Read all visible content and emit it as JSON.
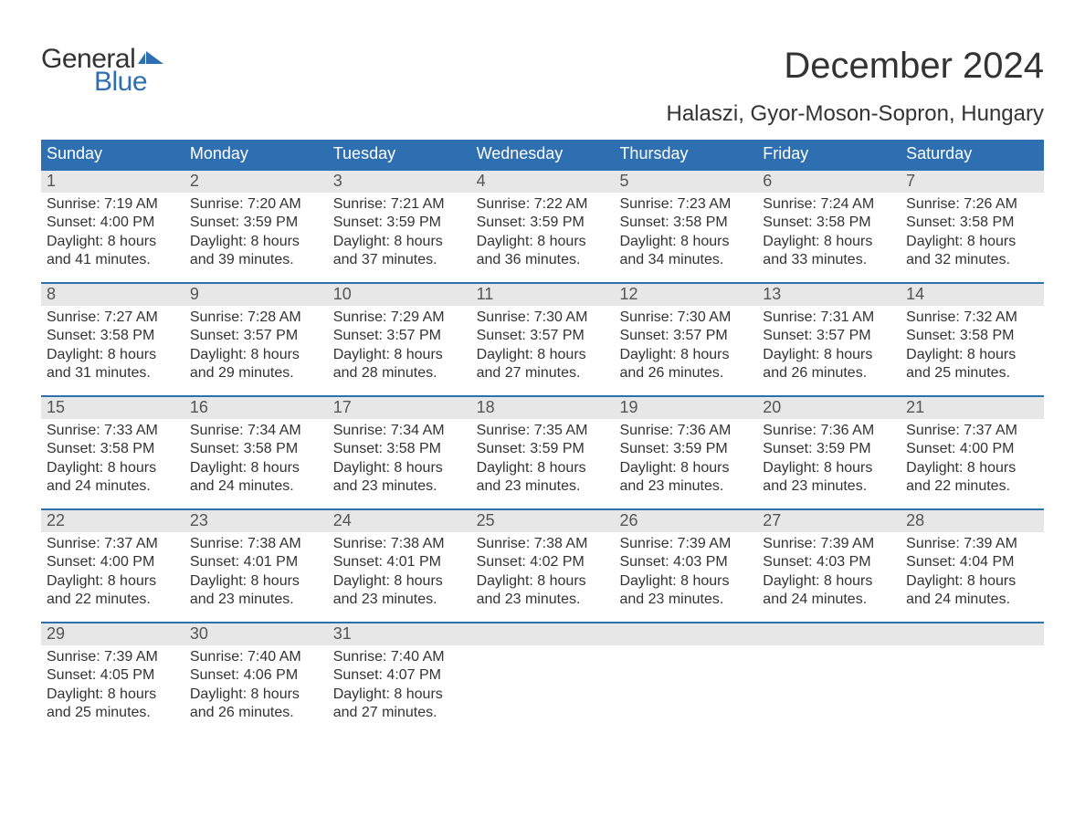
{
  "logo": {
    "word1": "General",
    "word2": "Blue",
    "flag_color": "#2e6fb2"
  },
  "title": "December 2024",
  "subtitle": "Halaszi, Gyor-Moson-Sopron, Hungary",
  "colors": {
    "header_bg": "#2e6fb2",
    "header_text": "#ffffff",
    "daynum_bg": "#e7e7e7",
    "daynum_text": "#555555",
    "body_text": "#333333",
    "week_border": "#2e6fb2",
    "page_bg": "#ffffff"
  },
  "typography": {
    "title_fontsize": 40,
    "subtitle_fontsize": 24,
    "header_fontsize": 18,
    "daynum_fontsize": 18,
    "detail_fontsize": 16,
    "logo_fontsize": 30,
    "font_family": "Arial"
  },
  "weekday_headers": [
    "Sunday",
    "Monday",
    "Tuesday",
    "Wednesday",
    "Thursday",
    "Friday",
    "Saturday"
  ],
  "weeks": [
    {
      "days": [
        {
          "num": "1",
          "sunrise": "Sunrise: 7:19 AM",
          "sunset": "Sunset: 4:00 PM",
          "dl1": "Daylight: 8 hours",
          "dl2": "and 41 minutes."
        },
        {
          "num": "2",
          "sunrise": "Sunrise: 7:20 AM",
          "sunset": "Sunset: 3:59 PM",
          "dl1": "Daylight: 8 hours",
          "dl2": "and 39 minutes."
        },
        {
          "num": "3",
          "sunrise": "Sunrise: 7:21 AM",
          "sunset": "Sunset: 3:59 PM",
          "dl1": "Daylight: 8 hours",
          "dl2": "and 37 minutes."
        },
        {
          "num": "4",
          "sunrise": "Sunrise: 7:22 AM",
          "sunset": "Sunset: 3:59 PM",
          "dl1": "Daylight: 8 hours",
          "dl2": "and 36 minutes."
        },
        {
          "num": "5",
          "sunrise": "Sunrise: 7:23 AM",
          "sunset": "Sunset: 3:58 PM",
          "dl1": "Daylight: 8 hours",
          "dl2": "and 34 minutes."
        },
        {
          "num": "6",
          "sunrise": "Sunrise: 7:24 AM",
          "sunset": "Sunset: 3:58 PM",
          "dl1": "Daylight: 8 hours",
          "dl2": "and 33 minutes."
        },
        {
          "num": "7",
          "sunrise": "Sunrise: 7:26 AM",
          "sunset": "Sunset: 3:58 PM",
          "dl1": "Daylight: 8 hours",
          "dl2": "and 32 minutes."
        }
      ]
    },
    {
      "days": [
        {
          "num": "8",
          "sunrise": "Sunrise: 7:27 AM",
          "sunset": "Sunset: 3:58 PM",
          "dl1": "Daylight: 8 hours",
          "dl2": "and 31 minutes."
        },
        {
          "num": "9",
          "sunrise": "Sunrise: 7:28 AM",
          "sunset": "Sunset: 3:57 PM",
          "dl1": "Daylight: 8 hours",
          "dl2": "and 29 minutes."
        },
        {
          "num": "10",
          "sunrise": "Sunrise: 7:29 AM",
          "sunset": "Sunset: 3:57 PM",
          "dl1": "Daylight: 8 hours",
          "dl2": "and 28 minutes."
        },
        {
          "num": "11",
          "sunrise": "Sunrise: 7:30 AM",
          "sunset": "Sunset: 3:57 PM",
          "dl1": "Daylight: 8 hours",
          "dl2": "and 27 minutes."
        },
        {
          "num": "12",
          "sunrise": "Sunrise: 7:30 AM",
          "sunset": "Sunset: 3:57 PM",
          "dl1": "Daylight: 8 hours",
          "dl2": "and 26 minutes."
        },
        {
          "num": "13",
          "sunrise": "Sunrise: 7:31 AM",
          "sunset": "Sunset: 3:57 PM",
          "dl1": "Daylight: 8 hours",
          "dl2": "and 26 minutes."
        },
        {
          "num": "14",
          "sunrise": "Sunrise: 7:32 AM",
          "sunset": "Sunset: 3:58 PM",
          "dl1": "Daylight: 8 hours",
          "dl2": "and 25 minutes."
        }
      ]
    },
    {
      "days": [
        {
          "num": "15",
          "sunrise": "Sunrise: 7:33 AM",
          "sunset": "Sunset: 3:58 PM",
          "dl1": "Daylight: 8 hours",
          "dl2": "and 24 minutes."
        },
        {
          "num": "16",
          "sunrise": "Sunrise: 7:34 AM",
          "sunset": "Sunset: 3:58 PM",
          "dl1": "Daylight: 8 hours",
          "dl2": "and 24 minutes."
        },
        {
          "num": "17",
          "sunrise": "Sunrise: 7:34 AM",
          "sunset": "Sunset: 3:58 PM",
          "dl1": "Daylight: 8 hours",
          "dl2": "and 23 minutes."
        },
        {
          "num": "18",
          "sunrise": "Sunrise: 7:35 AM",
          "sunset": "Sunset: 3:59 PM",
          "dl1": "Daylight: 8 hours",
          "dl2": "and 23 minutes."
        },
        {
          "num": "19",
          "sunrise": "Sunrise: 7:36 AM",
          "sunset": "Sunset: 3:59 PM",
          "dl1": "Daylight: 8 hours",
          "dl2": "and 23 minutes."
        },
        {
          "num": "20",
          "sunrise": "Sunrise: 7:36 AM",
          "sunset": "Sunset: 3:59 PM",
          "dl1": "Daylight: 8 hours",
          "dl2": "and 23 minutes."
        },
        {
          "num": "21",
          "sunrise": "Sunrise: 7:37 AM",
          "sunset": "Sunset: 4:00 PM",
          "dl1": "Daylight: 8 hours",
          "dl2": "and 22 minutes."
        }
      ]
    },
    {
      "days": [
        {
          "num": "22",
          "sunrise": "Sunrise: 7:37 AM",
          "sunset": "Sunset: 4:00 PM",
          "dl1": "Daylight: 8 hours",
          "dl2": "and 22 minutes."
        },
        {
          "num": "23",
          "sunrise": "Sunrise: 7:38 AM",
          "sunset": "Sunset: 4:01 PM",
          "dl1": "Daylight: 8 hours",
          "dl2": "and 23 minutes."
        },
        {
          "num": "24",
          "sunrise": "Sunrise: 7:38 AM",
          "sunset": "Sunset: 4:01 PM",
          "dl1": "Daylight: 8 hours",
          "dl2": "and 23 minutes."
        },
        {
          "num": "25",
          "sunrise": "Sunrise: 7:38 AM",
          "sunset": "Sunset: 4:02 PM",
          "dl1": "Daylight: 8 hours",
          "dl2": "and 23 minutes."
        },
        {
          "num": "26",
          "sunrise": "Sunrise: 7:39 AM",
          "sunset": "Sunset: 4:03 PM",
          "dl1": "Daylight: 8 hours",
          "dl2": "and 23 minutes."
        },
        {
          "num": "27",
          "sunrise": "Sunrise: 7:39 AM",
          "sunset": "Sunset: 4:03 PM",
          "dl1": "Daylight: 8 hours",
          "dl2": "and 24 minutes."
        },
        {
          "num": "28",
          "sunrise": "Sunrise: 7:39 AM",
          "sunset": "Sunset: 4:04 PM",
          "dl1": "Daylight: 8 hours",
          "dl2": "and 24 minutes."
        }
      ]
    },
    {
      "days": [
        {
          "num": "29",
          "sunrise": "Sunrise: 7:39 AM",
          "sunset": "Sunset: 4:05 PM",
          "dl1": "Daylight: 8 hours",
          "dl2": "and 25 minutes."
        },
        {
          "num": "30",
          "sunrise": "Sunrise: 7:40 AM",
          "sunset": "Sunset: 4:06 PM",
          "dl1": "Daylight: 8 hours",
          "dl2": "and 26 minutes."
        },
        {
          "num": "31",
          "sunrise": "Sunrise: 7:40 AM",
          "sunset": "Sunset: 4:07 PM",
          "dl1": "Daylight: 8 hours",
          "dl2": "and 27 minutes."
        },
        {
          "num": "",
          "sunrise": "",
          "sunset": "",
          "dl1": "",
          "dl2": ""
        },
        {
          "num": "",
          "sunrise": "",
          "sunset": "",
          "dl1": "",
          "dl2": ""
        },
        {
          "num": "",
          "sunrise": "",
          "sunset": "",
          "dl1": "",
          "dl2": ""
        },
        {
          "num": "",
          "sunrise": "",
          "sunset": "",
          "dl1": "",
          "dl2": ""
        }
      ]
    }
  ]
}
